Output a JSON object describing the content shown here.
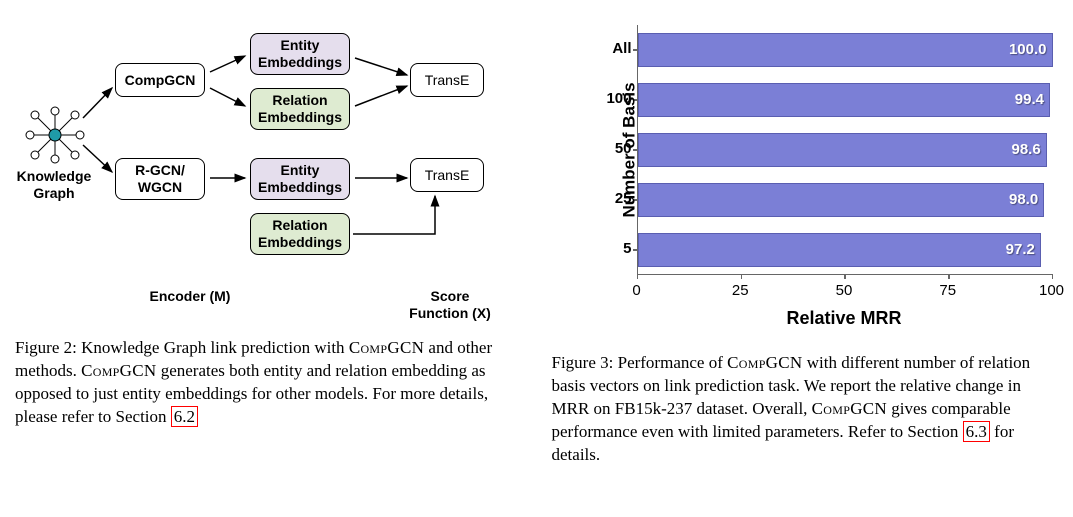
{
  "figure2": {
    "diagram": {
      "kg_label": "Knowledge\nGraph",
      "compgcn": "CompGCN",
      "rgcn": "R-GCN/\nWGCN",
      "entity_emb": "Entity\nEmbeddings",
      "relation_emb": "Relation\nEmbeddings",
      "transe": "TransE",
      "encoder_label": "Encoder (M)",
      "score_label": "Score\nFunction (X)",
      "colors": {
        "entity_bg": "#e5deed",
        "relation_bg": "#deebd1",
        "box_border": "#000000",
        "kg_node_center": "#1f9ba8",
        "kg_node_outer": "#ffffff"
      }
    },
    "caption_prefix": "Figure 2:",
    "caption_text_1": "  Knowledge Graph link prediction with ",
    "caption_compgcn_1": "CompGCN",
    "caption_text_2": " and other methods. ",
    "caption_compgcn_2": "CompGCN",
    "caption_text_3": " generates both entity and relation embedding as opposed to just entity embeddings for other models. For more details, please refer to Section ",
    "caption_link": "6.2"
  },
  "figure3": {
    "chart": {
      "type": "bar",
      "categories": [
        "All",
        "100",
        "50",
        "25",
        "5"
      ],
      "values": [
        100.0,
        99.4,
        98.6,
        98.0,
        97.2
      ],
      "value_labels": [
        "100.0",
        "99.4",
        "98.6",
        "98.0",
        "97.2"
      ],
      "bar_color": "#7b7fd6",
      "bar_border": "#5a5eb0",
      "xlim": [
        0,
        100
      ],
      "xticks": [
        0,
        25,
        50,
        75,
        100
      ],
      "ylabel": "Number of Basis",
      "xlabel": "Relative MRR",
      "background_color": "#ffffff",
      "axis_color": "#666666",
      "tick_fontsize": 15,
      "label_fontsize": 17
    },
    "caption_prefix": "Figure 3:",
    "caption_text_1": "  Performance of ",
    "caption_compgcn_1": "CompGCN",
    "caption_text_2": " with different number of relation basis vectors on link prediction task. We report the relative change in MRR on FB15k-237 dataset. Overall, ",
    "caption_compgcn_2": "CompGCN",
    "caption_text_3": " gives comparable performance even with limited parameters. Refer to Section ",
    "caption_link": "6.3",
    "caption_text_4": " for details."
  }
}
